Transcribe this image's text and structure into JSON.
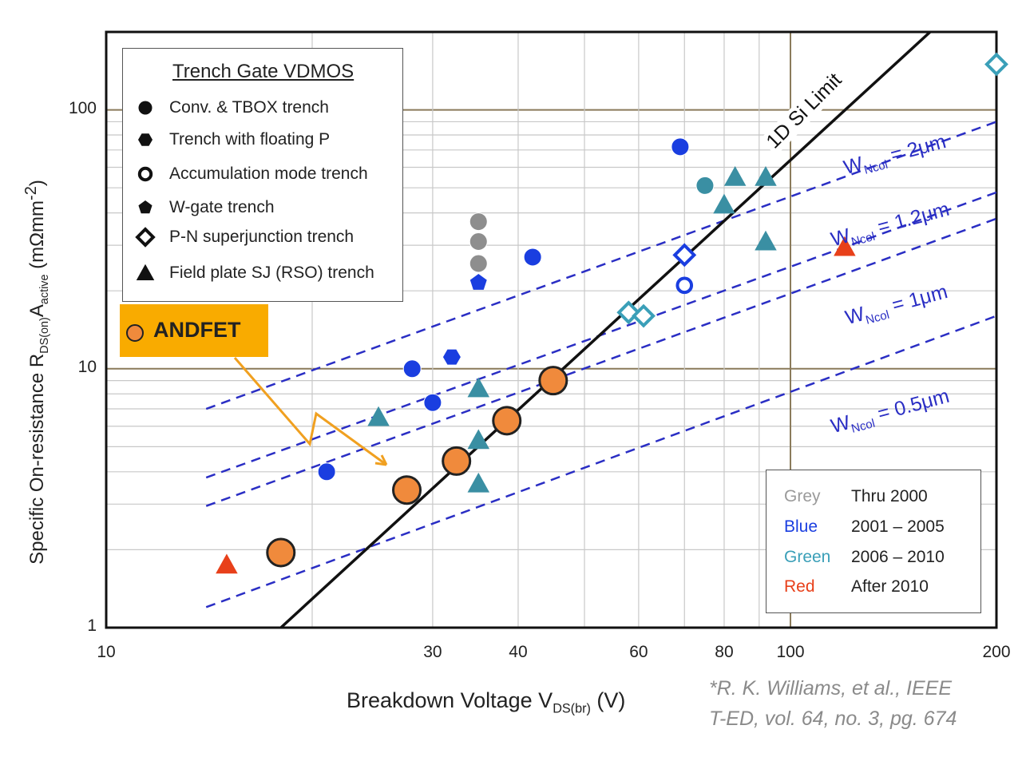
{
  "chart_data": {
    "type": "scatter",
    "x_scale": "log",
    "y_scale": "log",
    "xlim": [
      10,
      200
    ],
    "ylim": [
      1,
      200
    ],
    "xlabel_main": "Breakdown Voltage V",
    "xlabel_sub": "DS(br)",
    "xlabel_unit": " (V)",
    "ylabel_main": "Specific On-resistance R",
    "ylabel_sub1": "DS(on)",
    "ylabel_mid": "A",
    "ylabel_sub2": "active",
    "ylabel_unit": " (mΩmm",
    "ylabel_sup": "-2",
    "ylabel_end": ")",
    "x_ticks": [
      {
        "value": 10,
        "label": "10"
      },
      {
        "value": 30,
        "label": "30"
      },
      {
        "value": 40,
        "label": "40"
      },
      {
        "value": 60,
        "label": "60"
      },
      {
        "value": 80,
        "label": "80"
      },
      {
        "value": 100,
        "label": "100"
      },
      {
        "value": 200,
        "label": "200"
      }
    ],
    "y_ticks": [
      {
        "value": 1,
        "label": "1"
      },
      {
        "value": 10,
        "label": "10"
      },
      {
        "value": 100,
        "label": "100"
      }
    ],
    "grid": true,
    "si_limit": {
      "label": "1D Si Limit",
      "points": [
        [
          18,
          1
        ],
        [
          160,
          200
        ]
      ]
    },
    "wncol_lines": [
      {
        "label_main": "W",
        "label_sub": "Ncol",
        "label_val": " = 2μm",
        "points": [
          [
            14,
            7.0
          ],
          [
            200,
            90
          ]
        ]
      },
      {
        "label_main": "W",
        "label_sub": "Ncol",
        "label_val": " = 1.2μm",
        "points": [
          [
            14,
            3.8
          ],
          [
            200,
            48
          ]
        ]
      },
      {
        "label_main": "W",
        "label_sub": "Ncol",
        "label_val": " = 1μm",
        "points": [
          [
            14,
            2.95
          ],
          [
            200,
            38
          ]
        ]
      },
      {
        "label_main": "W",
        "label_sub": "Ncol",
        "label_val": " = 0.5μm",
        "points": [
          [
            14,
            1.2
          ],
          [
            200,
            16
          ]
        ]
      }
    ],
    "series": [
      {
        "name": "ANDFET",
        "marker": "circle",
        "color": "#f08a3c",
        "points": [
          [
            18,
            1.95
          ],
          [
            27.5,
            3.4
          ],
          [
            32.5,
            4.4
          ],
          [
            38.5,
            6.3
          ],
          [
            45,
            9.0
          ]
        ]
      },
      {
        "name": "Grey",
        "marker": "circle",
        "color": "#8e8e8e",
        "points": [
          [
            35,
            37
          ],
          [
            35,
            31
          ],
          [
            35,
            25.5
          ]
        ]
      },
      {
        "name": "Blue circle",
        "marker": "circle",
        "color": "#1a3ee0",
        "points": [
          [
            21,
            4.0
          ],
          [
            28,
            10
          ],
          [
            30,
            7.4
          ],
          [
            42,
            27
          ],
          [
            69,
            72
          ]
        ]
      },
      {
        "name": "Blue floating P",
        "marker": "hexagon",
        "color": "#1a3ee0",
        "points": [
          [
            32,
            11.1
          ]
        ]
      },
      {
        "name": "Blue W-gate",
        "marker": "pentagon",
        "color": "#1a3ee0",
        "points": [
          [
            35,
            21.5
          ]
        ]
      },
      {
        "name": "Blue accumulation",
        "marker": "open-circle",
        "color": "#1a3ee0",
        "points": [
          [
            70,
            21
          ]
        ]
      },
      {
        "name": "Blue superjunction",
        "marker": "open-diamond",
        "color": "#1a3ee0",
        "points": [
          [
            70,
            27.5
          ]
        ]
      },
      {
        "name": "Green circle",
        "marker": "circle",
        "color": "#3a8fa3",
        "points": [
          [
            75,
            51
          ]
        ]
      },
      {
        "name": "Green triangle",
        "marker": "triangle",
        "color": "#3a8fa3",
        "points": [
          [
            25,
            6.5
          ],
          [
            35,
            8.4
          ],
          [
            35,
            5.3
          ],
          [
            35,
            3.6
          ],
          [
            80,
            43
          ],
          [
            83,
            55
          ],
          [
            92,
            55
          ],
          [
            92,
            31
          ]
        ]
      },
      {
        "name": "Green superjunction",
        "marker": "open-diamond",
        "color": "#3a9fb8",
        "points": [
          [
            58,
            16.5
          ],
          [
            61,
            16
          ],
          [
            200,
            150
          ]
        ]
      },
      {
        "name": "Red triangle",
        "marker": "triangle",
        "color": "#e8401a",
        "points": [
          [
            15,
            1.75
          ],
          [
            120,
            29.5
          ]
        ]
      }
    ]
  },
  "legend": {
    "title": "Trench Gate VDMOS",
    "items": [
      {
        "symbol": "circle",
        "label": "Conv. & TBOX trench"
      },
      {
        "symbol": "hexagon",
        "label": "Trench with floating P"
      },
      {
        "symbol": "open-circle",
        "label": "Accumulation mode trench"
      },
      {
        "symbol": "pentagon",
        "label": "W-gate trench"
      },
      {
        "symbol": "open-diamond",
        "label": "P-N superjunction trench"
      },
      {
        "symbol": "triangle",
        "label": "Field plate SJ (RSO) trench"
      }
    ]
  },
  "andfet_label": "ANDFET",
  "era_legend": [
    {
      "color_name": "Grey",
      "color": "#9a9a9a",
      "years": "Thru 2000"
    },
    {
      "color_name": "Blue",
      "color": "#1a3ee0",
      "years": "2001 – 2005"
    },
    {
      "color_name": "Green",
      "color": "#3a9fb8",
      "years": "2006 – 2010"
    },
    {
      "color_name": "Red",
      "color": "#e8401a",
      "years": "After 2010"
    }
  ],
  "citation": {
    "line1": "*R. K. Williams, et al., IEEE",
    "line2": "T-ED, vol. 64, no. 3, pg. 674"
  }
}
